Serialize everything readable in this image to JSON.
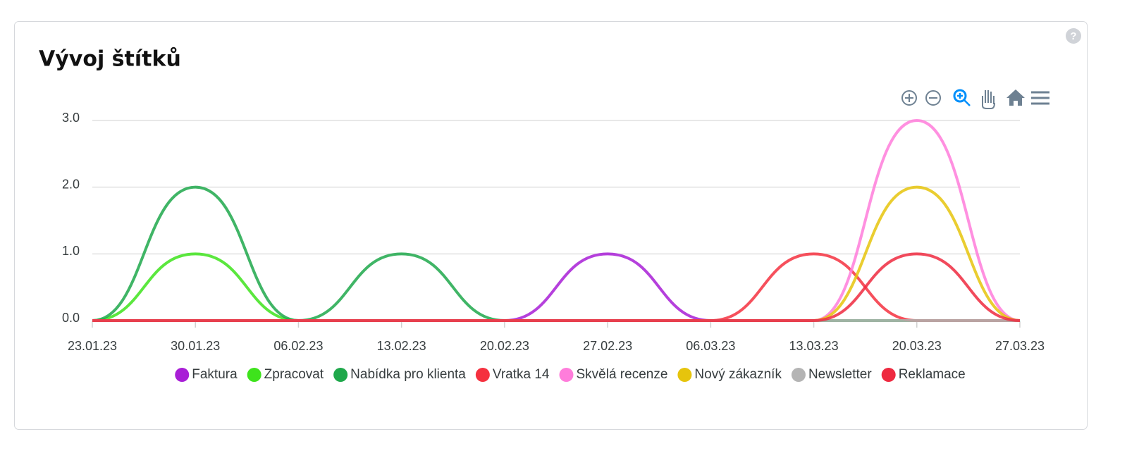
{
  "chart_data": {
    "type": "line",
    "title": "Vývoj štítků",
    "help": "?",
    "categories": [
      "23.01.23",
      "30.01.23",
      "06.02.23",
      "13.02.23",
      "20.02.23",
      "27.02.23",
      "06.03.23",
      "13.03.23",
      "20.03.23",
      "27.03.23"
    ],
    "series": [
      {
        "name": "Faktura",
        "color": "#a81ed6",
        "values": [
          0,
          0,
          0,
          0,
          0,
          1,
          0,
          0,
          0,
          0
        ]
      },
      {
        "name": "Zpracovat",
        "color": "#3ee31c",
        "values": [
          0,
          1,
          0,
          0,
          0,
          0,
          0,
          0,
          0,
          0
        ]
      },
      {
        "name": "Nabídka pro klienta",
        "color": "#1fa84b",
        "values": [
          0,
          2,
          0,
          1,
          0,
          0,
          0,
          0,
          0,
          0
        ]
      },
      {
        "name": "Vratka 14",
        "color": "#f5313f",
        "values": [
          0,
          0,
          0,
          0,
          0,
          0,
          0,
          1,
          0,
          0
        ]
      },
      {
        "name": "Skvělá recenze",
        "color": "#ff7ddb",
        "values": [
          0,
          0,
          0,
          0,
          0,
          0,
          0,
          0,
          3,
          0
        ]
      },
      {
        "name": "Nový zákazník",
        "color": "#e6c40c",
        "values": [
          0,
          0,
          0,
          0,
          0,
          0,
          0,
          0,
          2,
          0
        ]
      },
      {
        "name": "Newsletter",
        "color": "#b4b4b4",
        "values": [
          0,
          0,
          0,
          0,
          0,
          0,
          0,
          0,
          0,
          0
        ]
      },
      {
        "name": "Reklamace",
        "color": "#ee2a40",
        "values": [
          0,
          0,
          0,
          0,
          0,
          0,
          0,
          0,
          1,
          0
        ]
      }
    ],
    "ylim": [
      0,
      3
    ],
    "yticks": [
      {
        "value": 0,
        "label": "0.0"
      },
      {
        "value": 1,
        "label": "1.0"
      },
      {
        "value": 2,
        "label": "2.0"
      },
      {
        "value": 3,
        "label": "3.0"
      }
    ],
    "grid": true,
    "legend": "bottom"
  }
}
